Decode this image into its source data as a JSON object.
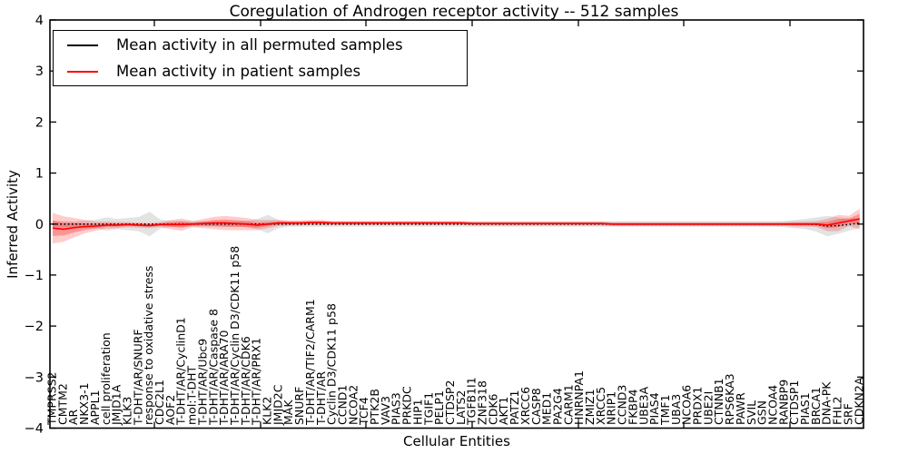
{
  "chart_data": {
    "type": "line",
    "title": "Coregulation of Androgen receptor activity -- 512 samples",
    "xlabel": "Cellular Entities",
    "ylabel": "Inferred Activity",
    "ylim": [
      -4,
      4
    ],
    "ytick_labels": [
      "4",
      "3",
      "2",
      "1",
      "0",
      "−1",
      "−2",
      "−3",
      "−4"
    ],
    "ytick_values": [
      4,
      3,
      2,
      1,
      0,
      -1,
      -2,
      -3,
      -4
    ],
    "grid": false,
    "legend_position": "upper left",
    "categories": [
      "TMPRSS2",
      "CMTM2",
      "AR",
      "NKX3-1",
      "APPL1",
      "cell proliferation",
      "JMJD1A",
      "KLK3",
      "T-DHT/AR/SNURF",
      "response to oxidative stress",
      "CDC2L1",
      "AOF2",
      "T-DHT/AR/CyclinD1",
      "mol:T-DHT",
      "T-DHT/AR/Ubc9",
      "T-DHT/AR/Caspase 8",
      "T-DHT/AR/ARA70",
      "T-DHT/AR/Cyclin D3/CDK11 p58",
      "T-DHT/AR/CDK6",
      "T-DHT/AR/PRX1",
      "KLK2",
      "JMJD2C",
      "MAK",
      "SNURF",
      "T-DHT/AR/TIF2/CARM1",
      "T-DHT/AR",
      "Cyclin D3/CDK11 p58",
      "CCND1",
      "NCOA2",
      "TCF4",
      "PTK2B",
      "VAV3",
      "PIAS3",
      "PRKDC",
      "HIP1",
      "TGIF1",
      "PELP1",
      "CTDSP2",
      "LATS2",
      "TGFB1I1",
      "ZNF318",
      "CDK6",
      "AKT1",
      "PATZ1",
      "XRCC6",
      "CASP8",
      "MED1",
      "PA2G4",
      "CARM1",
      "HNRNPA1",
      "ZMIZ1",
      "XRCC5",
      "NRIP1",
      "CCND3",
      "FKBP4",
      "UBE3A",
      "PIAS4",
      "TMF1",
      "UBA3",
      "NCOA6",
      "PRDX1",
      "UBE2I",
      "CTNNB1",
      "RPS6KA3",
      "PAWR",
      "SVIL",
      "GSN",
      "NCOA4",
      "RANBP9",
      "CTDSP1",
      "PIAS1",
      "BRCA1",
      "DNA-PK",
      "FHL2",
      "SRF",
      "CDKN2A"
    ],
    "series": [
      {
        "name": "Mean activity in all permuted samples",
        "color": "#000000",
        "line_style": "dotted",
        "band_color": "#999999",
        "values": [
          0,
          0,
          0,
          0,
          0,
          0,
          0,
          0,
          0,
          0,
          0,
          0,
          0,
          0,
          0,
          0,
          0,
          0,
          0,
          0,
          0,
          0,
          0,
          0,
          0,
          0,
          0,
          0,
          0,
          0,
          0,
          0,
          0,
          0,
          0,
          0,
          0,
          0,
          0,
          0,
          0,
          0,
          0,
          0,
          0,
          0,
          0,
          0,
          0,
          0,
          0,
          0,
          0,
          0,
          0,
          0,
          0,
          0,
          0,
          0,
          0,
          0,
          0,
          0,
          0,
          0,
          0,
          0,
          0,
          0,
          0,
          -0.01,
          -0.04,
          -0.03,
          -0.01,
          0.02
        ],
        "band_halfwidth": [
          0.06,
          0.06,
          0.05,
          0.07,
          0.08,
          0.13,
          0.1,
          0.12,
          0.14,
          0.24,
          0.09,
          0.06,
          0.06,
          0.05,
          0.05,
          0.05,
          0.05,
          0.05,
          0.06,
          0.1,
          0.18,
          0.08,
          0.05,
          0.05,
          0.05,
          0.05,
          0.05,
          0.05,
          0.05,
          0.05,
          0.05,
          0.05,
          0.05,
          0.05,
          0.05,
          0.05,
          0.05,
          0.05,
          0.05,
          0.05,
          0.05,
          0.05,
          0.05,
          0.05,
          0.05,
          0.05,
          0.05,
          0.05,
          0.05,
          0.05,
          0.05,
          0.05,
          0.05,
          0.05,
          0.05,
          0.05,
          0.05,
          0.05,
          0.05,
          0.05,
          0.05,
          0.05,
          0.05,
          0.05,
          0.05,
          0.05,
          0.05,
          0.05,
          0.06,
          0.08,
          0.1,
          0.14,
          0.2,
          0.16,
          0.12,
          0.1
        ]
      },
      {
        "name": "Mean activity in patient samples",
        "color": "#ff0000",
        "line_style": "solid",
        "band_color": "#ff0000",
        "values": [
          -0.08,
          -0.1,
          -0.07,
          -0.05,
          -0.04,
          -0.02,
          -0.02,
          -0.01,
          -0.02,
          -0.03,
          -0.01,
          -0.01,
          -0.01,
          0,
          0.01,
          0.02,
          0.02,
          0.01,
          0,
          -0.02,
          0,
          0.02,
          0.02,
          0.02,
          0.03,
          0.03,
          0.02,
          0.02,
          0.02,
          0.02,
          0.02,
          0.02,
          0.02,
          0.02,
          0.02,
          0.02,
          0.02,
          0.02,
          0.02,
          0.01,
          0.01,
          0.01,
          0.01,
          0.01,
          0.01,
          0.01,
          0.01,
          0.01,
          0.01,
          0.01,
          0.01,
          0.01,
          0,
          0,
          0,
          0,
          0,
          0,
          0,
          0,
          0,
          0,
          0,
          0,
          0,
          0,
          0,
          0,
          0,
          0,
          0,
          0,
          -0.02,
          0.02,
          0.06,
          0.1
        ],
        "band_halfwidth": [
          0.3,
          0.25,
          0.19,
          0.13,
          0.09,
          0.07,
          0.06,
          0.05,
          0.05,
          0.05,
          0.05,
          0.09,
          0.12,
          0.06,
          0.09,
          0.12,
          0.14,
          0.13,
          0.12,
          0.1,
          0.08,
          0.06,
          0.05,
          0.05,
          0.05,
          0.05,
          0.04,
          0.04,
          0.04,
          0.04,
          0.04,
          0.04,
          0.04,
          0.04,
          0.04,
          0.04,
          0.04,
          0.04,
          0.04,
          0.04,
          0.04,
          0.04,
          0.04,
          0.04,
          0.04,
          0.04,
          0.04,
          0.04,
          0.04,
          0.04,
          0.04,
          0.04,
          0.04,
          0.04,
          0.04,
          0.04,
          0.04,
          0.04,
          0.04,
          0.04,
          0.04,
          0.04,
          0.04,
          0.04,
          0.04,
          0.04,
          0.04,
          0.04,
          0.04,
          0.05,
          0.05,
          0.06,
          0.12,
          0.16,
          0.1,
          0.2
        ]
      }
    ]
  }
}
